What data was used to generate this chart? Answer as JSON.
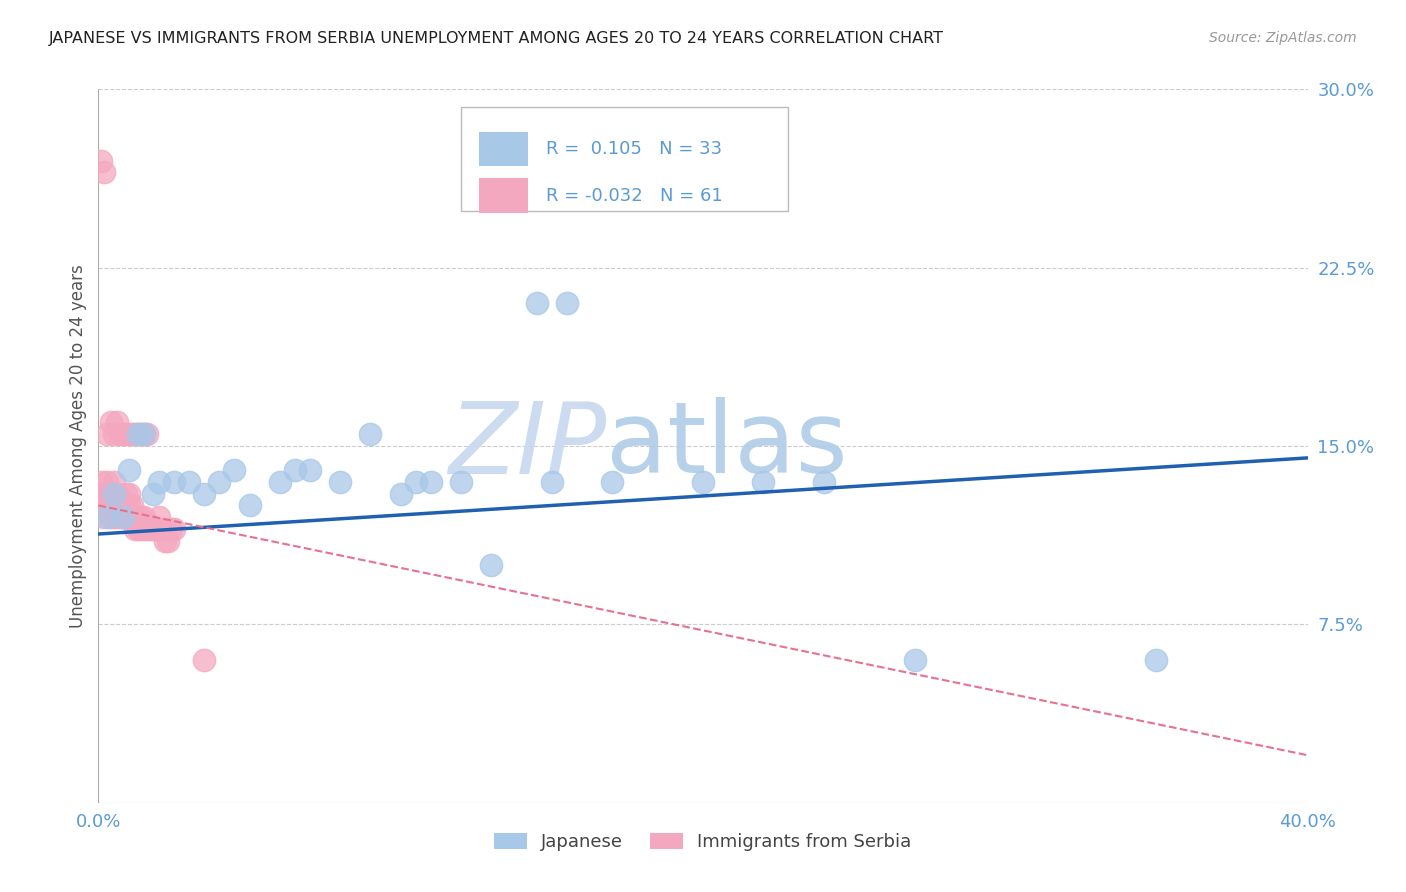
{
  "title": "JAPANESE VS IMMIGRANTS FROM SERBIA UNEMPLOYMENT AMONG AGES 20 TO 24 YEARS CORRELATION CHART",
  "source": "Source: ZipAtlas.com",
  "ylabel": "Unemployment Among Ages 20 to 24 years",
  "xlim": [
    0.0,
    0.4
  ],
  "ylim": [
    0.0,
    0.3
  ],
  "blue_color": "#a8c8e8",
  "pink_color": "#f4a8c0",
  "blue_line_color": "#2060b0",
  "pink_line_color": "#e87090",
  "blue_r": 0.105,
  "pink_r": -0.032,
  "blue_n": 33,
  "pink_n": 61,
  "watermark_zip": "ZIP",
  "watermark_atlas": "atlas",
  "watermark_color_zip": "#c8d8f0",
  "watermark_color_atlas": "#b0c8e8",
  "background_color": "#ffffff",
  "grid_color": "#cccccc",
  "tick_color": "#5b9bd5",
  "title_color": "#222222",
  "axis_label_color": "#555555",
  "blue_x": [
    0.003,
    0.005,
    0.008,
    0.01,
    0.013,
    0.015,
    0.018,
    0.02,
    0.025,
    0.03,
    0.035,
    0.04,
    0.045,
    0.05,
    0.06,
    0.065,
    0.07,
    0.08,
    0.09,
    0.1,
    0.105,
    0.11,
    0.12,
    0.13,
    0.15,
    0.17,
    0.2,
    0.22,
    0.24,
    0.27,
    0.145,
    0.155,
    0.35
  ],
  "blue_y": [
    0.12,
    0.13,
    0.12,
    0.14,
    0.155,
    0.155,
    0.13,
    0.135,
    0.135,
    0.135,
    0.13,
    0.135,
    0.14,
    0.125,
    0.135,
    0.14,
    0.14,
    0.135,
    0.155,
    0.13,
    0.135,
    0.135,
    0.135,
    0.1,
    0.135,
    0.135,
    0.135,
    0.135,
    0.135,
    0.06,
    0.21,
    0.21,
    0.06
  ],
  "serbia_x": [
    0.001,
    0.001,
    0.002,
    0.002,
    0.003,
    0.003,
    0.003,
    0.004,
    0.004,
    0.005,
    0.005,
    0.005,
    0.006,
    0.006,
    0.007,
    0.007,
    0.008,
    0.008,
    0.009,
    0.009,
    0.01,
    0.01,
    0.01,
    0.011,
    0.011,
    0.012,
    0.012,
    0.013,
    0.013,
    0.014,
    0.014,
    0.015,
    0.015,
    0.016,
    0.017,
    0.018,
    0.019,
    0.02,
    0.02,
    0.021,
    0.022,
    0.023,
    0.024,
    0.025,
    0.003,
    0.004,
    0.005,
    0.006,
    0.007,
    0.008,
    0.009,
    0.01,
    0.011,
    0.012,
    0.013,
    0.014,
    0.015,
    0.016,
    0.035,
    0.001,
    0.002
  ],
  "serbia_y": [
    0.13,
    0.135,
    0.12,
    0.13,
    0.125,
    0.13,
    0.135,
    0.12,
    0.13,
    0.12,
    0.125,
    0.135,
    0.12,
    0.13,
    0.12,
    0.125,
    0.12,
    0.125,
    0.12,
    0.13,
    0.12,
    0.125,
    0.13,
    0.12,
    0.125,
    0.115,
    0.12,
    0.115,
    0.12,
    0.115,
    0.12,
    0.115,
    0.12,
    0.115,
    0.115,
    0.115,
    0.115,
    0.115,
    0.12,
    0.115,
    0.11,
    0.11,
    0.115,
    0.115,
    0.155,
    0.16,
    0.155,
    0.16,
    0.155,
    0.155,
    0.155,
    0.155,
    0.155,
    0.155,
    0.155,
    0.155,
    0.155,
    0.155,
    0.06,
    0.27,
    0.265
  ]
}
